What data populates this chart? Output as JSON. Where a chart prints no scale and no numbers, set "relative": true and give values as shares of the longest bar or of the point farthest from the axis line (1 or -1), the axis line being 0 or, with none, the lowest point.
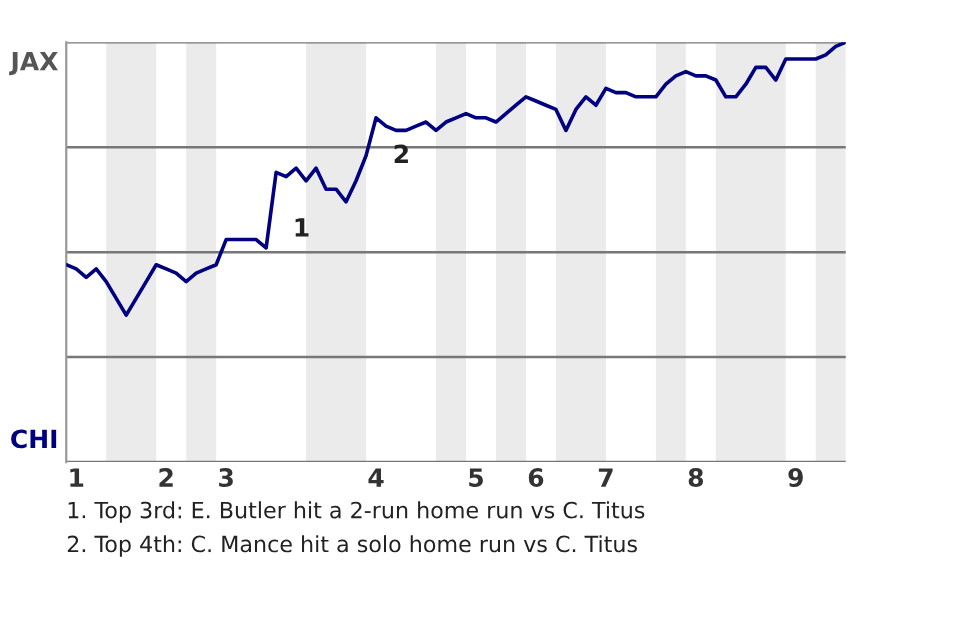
{
  "chart_data": {
    "type": "line",
    "relative": true,
    "categories": [
      null,
      "1",
      null,
      null,
      null,
      null,
      null,
      null,
      null,
      null,
      "2",
      null,
      null,
      null,
      null,
      null,
      "3",
      null,
      null,
      null,
      null,
      null,
      null,
      null,
      null,
      null,
      null,
      null,
      null,
      null,
      null,
      "4",
      null,
      null,
      null,
      null,
      null,
      null,
      null,
      null,
      null,
      "5",
      null,
      null,
      null,
      null,
      null,
      "6",
      null,
      null,
      null,
      null,
      null,
      null,
      "7",
      null,
      null,
      null,
      null,
      null,
      null,
      null,
      null,
      "8",
      null,
      null,
      null,
      null,
      null,
      null,
      null,
      null,
      null,
      "9",
      null,
      null,
      null,
      null,
      null
    ],
    "series": [
      {
        "color": "#000080",
        "values": [
          0.47,
          0.46,
          0.44,
          0.46,
          0.43,
          0.39,
          0.35,
          0.39,
          0.43,
          0.47,
          0.46,
          0.45,
          0.43,
          0.45,
          0.46,
          0.47,
          0.53,
          0.53,
          0.53,
          0.53,
          0.51,
          0.69,
          0.68,
          0.7,
          0.67,
          0.7,
          0.65,
          0.65,
          0.62,
          0.67,
          0.73,
          0.82,
          0.8,
          0.79,
          0.79,
          0.8,
          0.81,
          0.79,
          0.81,
          0.82,
          0.83,
          0.82,
          0.82,
          0.81,
          0.83,
          0.85,
          0.87,
          0.86,
          0.85,
          0.84,
          0.79,
          0.84,
          0.87,
          0.85,
          0.89,
          0.88,
          0.88,
          0.87,
          0.87,
          0.87,
          0.9,
          0.92,
          0.93,
          0.92,
          0.92,
          0.91,
          0.87,
          0.87,
          0.9,
          0.94,
          0.94,
          0.91,
          0.96,
          0.96,
          0.96,
          0.96,
          0.97,
          0.99,
          1.0
        ]
      }
    ],
    "grid": "y",
    "annotations": [
      "JAX",
      "CHI",
      "1",
      "2",
      "1. Top 3rd: E. Butler hit a 2-run home run vs C. Titus",
      "2. Top 4th: C. Mance hit a solo home run vs C. Titus"
    ]
  }
}
